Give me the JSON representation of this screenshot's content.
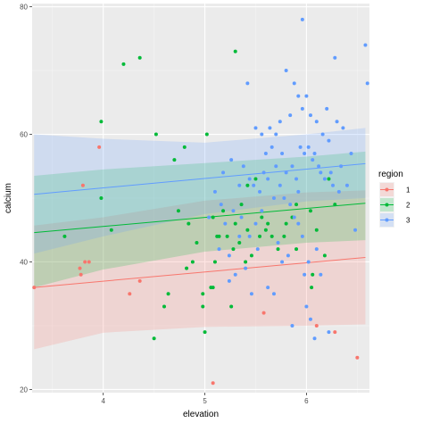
{
  "chart_data": {
    "type": "scatter",
    "xlabel": "elevation",
    "ylabel": "calcium",
    "xlim": [
      3.3,
      6.62
    ],
    "ylim": [
      19.5,
      80.5
    ],
    "x_ticks": [
      4,
      5,
      6
    ],
    "y_ticks": [
      20,
      40,
      60,
      80
    ],
    "grid": true,
    "legend": {
      "title": "region",
      "position": "right"
    },
    "series": [
      {
        "name": "1",
        "color": "#F8766D",
        "fit": {
          "x": [
            3.32,
            6.58
          ],
          "y": [
            36.0,
            40.7
          ],
          "lower": [
            [
              3.32,
              26.3
            ],
            [
              4.0,
              28.9
            ],
            [
              5.0,
              29.8
            ],
            [
              6.0,
              30.0
            ],
            [
              6.58,
              30.2
            ]
          ],
          "upper": [
            [
              3.32,
              45.7
            ],
            [
              4.0,
              47.0
            ],
            [
              5.0,
              49.6
            ],
            [
              6.0,
              50.9
            ],
            [
              6.58,
              51.2
            ]
          ]
        },
        "points": [
          [
            3.32,
            36
          ],
          [
            3.8,
            52
          ],
          [
            3.82,
            40
          ],
          [
            3.86,
            40
          ],
          [
            3.77,
            39
          ],
          [
            3.78,
            38
          ],
          [
            3.96,
            58
          ],
          [
            4.26,
            35
          ],
          [
            4.36,
            37
          ],
          [
            5.08,
            21
          ],
          [
            5.58,
            32
          ],
          [
            6.1,
            30
          ],
          [
            6.28,
            29
          ],
          [
            6.5,
            25
          ]
        ]
      },
      {
        "name": "2",
        "color": "#00BA38",
        "fit": {
          "x": [
            3.32,
            6.58
          ],
          "y": [
            44.6,
            49.2
          ],
          "lower": [
            [
              3.32,
              36.0
            ],
            [
              4.0,
              38.8
            ],
            [
              5.0,
              41.6
            ],
            [
              6.0,
              43.0
            ],
            [
              6.58,
              43.4
            ]
          ],
          "upper": [
            [
              3.32,
              53.5
            ],
            [
              4.0,
              54.5
            ],
            [
              5.0,
              55.5
            ],
            [
              6.0,
              56.5
            ],
            [
              6.58,
              57.3
            ]
          ]
        },
        "points": [
          [
            3.62,
            44
          ],
          [
            3.98,
            62
          ],
          [
            4.2,
            71
          ],
          [
            4.36,
            72
          ],
          [
            3.98,
            50
          ],
          [
            4.08,
            45
          ],
          [
            4.52,
            60
          ],
          [
            4.7,
            56
          ],
          [
            4.8,
            58
          ],
          [
            5.02,
            60
          ],
          [
            5.3,
            73
          ],
          [
            5.42,
            52
          ],
          [
            4.92,
            43
          ],
          [
            4.98,
            35
          ],
          [
            5.08,
            47
          ],
          [
            5.12,
            44
          ],
          [
            5.18,
            48
          ],
          [
            5.22,
            44
          ],
          [
            5.28,
            42
          ],
          [
            5.3,
            46
          ],
          [
            5.34,
            43
          ],
          [
            5.36,
            49
          ],
          [
            5.42,
            45
          ],
          [
            5.46,
            41
          ],
          [
            5.5,
            53
          ],
          [
            5.56,
            47
          ],
          [
            5.6,
            45
          ],
          [
            5.66,
            44
          ],
          [
            5.72,
            42
          ],
          [
            5.78,
            44
          ],
          [
            5.8,
            46
          ],
          [
            5.86,
            47
          ],
          [
            5.9,
            49
          ],
          [
            6.04,
            48
          ],
          [
            6.06,
            38
          ],
          [
            6.1,
            45
          ],
          [
            6.18,
            41
          ],
          [
            6.22,
            53
          ],
          [
            6.28,
            49
          ],
          [
            4.98,
            33
          ],
          [
            5.08,
            36
          ],
          [
            4.88,
            40
          ],
          [
            5.4,
            40
          ],
          [
            4.6,
            33
          ],
          [
            4.5,
            28
          ],
          [
            5.0,
            29
          ],
          [
            5.54,
            44
          ],
          [
            5.62,
            46
          ],
          [
            5.26,
            33
          ],
          [
            4.84,
            46
          ],
          [
            5.06,
            36
          ],
          [
            5.1,
            40
          ],
          [
            4.82,
            39
          ],
          [
            5.9,
            42
          ],
          [
            4.64,
            35
          ],
          [
            4.74,
            48
          ],
          [
            6.05,
            36
          ],
          [
            5.14,
            44
          ]
        ]
      },
      {
        "name": "3",
        "color": "#619CFF",
        "fit": {
          "x": [
            3.32,
            6.58
          ],
          "y": [
            50.6,
            55.4
          ],
          "lower": [
            [
              3.32,
              41.3
            ],
            [
              4.0,
              44.0
            ],
            [
              5.0,
              47.5
            ],
            [
              6.0,
              49.5
            ],
            [
              6.58,
              50.0
            ]
          ],
          "upper": [
            [
              3.32,
              60.0
            ],
            [
              4.0,
              59.3
            ],
            [
              5.0,
              58.7
            ],
            [
              6.0,
              60.0
            ],
            [
              6.58,
              61.0
            ]
          ]
        },
        "points": [
          [
            5.96,
            78
          ],
          [
            6.58,
            74
          ],
          [
            6.28,
            72
          ],
          [
            6.6,
            68
          ],
          [
            5.8,
            70
          ],
          [
            5.88,
            68
          ],
          [
            5.92,
            66
          ],
          [
            5.96,
            64
          ],
          [
            6.0,
            66
          ],
          [
            6.04,
            63
          ],
          [
            6.1,
            62
          ],
          [
            6.2,
            64
          ],
          [
            6.3,
            62
          ],
          [
            6.16,
            60
          ],
          [
            6.22,
            59
          ],
          [
            6.36,
            61
          ],
          [
            5.42,
            68
          ],
          [
            5.5,
            61
          ],
          [
            5.56,
            60
          ],
          [
            5.6,
            57
          ],
          [
            5.66,
            58
          ],
          [
            5.7,
            55
          ],
          [
            5.76,
            57
          ],
          [
            5.8,
            54
          ],
          [
            5.86,
            55
          ],
          [
            5.9,
            53
          ],
          [
            5.94,
            58
          ],
          [
            5.98,
            57
          ],
          [
            6.02,
            58
          ],
          [
            6.06,
            56
          ],
          [
            6.08,
            57
          ],
          [
            6.12,
            55
          ],
          [
            6.14,
            54
          ],
          [
            6.18,
            53
          ],
          [
            6.26,
            52
          ],
          [
            6.32,
            51
          ],
          [
            6.4,
            52
          ],
          [
            5.38,
            55
          ],
          [
            5.44,
            53
          ],
          [
            5.48,
            52
          ],
          [
            5.54,
            51
          ],
          [
            5.62,
            53
          ],
          [
            5.68,
            50
          ],
          [
            5.74,
            52
          ],
          [
            5.78,
            50
          ],
          [
            5.84,
            49
          ],
          [
            5.88,
            47
          ],
          [
            5.92,
            46
          ],
          [
            5.96,
            44
          ],
          [
            5.36,
            47
          ],
          [
            5.28,
            48
          ],
          [
            5.2,
            46
          ],
          [
            5.16,
            49
          ],
          [
            5.04,
            47
          ],
          [
            5.44,
            44
          ],
          [
            5.5,
            46
          ],
          [
            5.52,
            42
          ],
          [
            5.72,
            43
          ],
          [
            5.76,
            40
          ],
          [
            5.82,
            41
          ],
          [
            5.98,
            38
          ],
          [
            6.02,
            40
          ],
          [
            6.1,
            42
          ],
          [
            6.14,
            38
          ],
          [
            5.3,
            38
          ],
          [
            5.24,
            37
          ],
          [
            5.46,
            35
          ],
          [
            5.62,
            36
          ],
          [
            5.68,
            35
          ],
          [
            5.86,
            30
          ],
          [
            6.0,
            33
          ],
          [
            6.04,
            31
          ],
          [
            6.08,
            28
          ],
          [
            6.22,
            29
          ],
          [
            5.92,
            51
          ],
          [
            5.18,
            54
          ],
          [
            5.26,
            56
          ],
          [
            5.34,
            52
          ],
          [
            5.58,
            54
          ],
          [
            5.64,
            61
          ],
          [
            5.7,
            60
          ],
          [
            5.74,
            62
          ],
          [
            5.84,
            63
          ],
          [
            6.24,
            54
          ],
          [
            6.44,
            57
          ],
          [
            6.34,
            55
          ],
          [
            5.56,
            48
          ],
          [
            5.1,
            51
          ],
          [
            5.14,
            42
          ],
          [
            5.24,
            41
          ],
          [
            5.34,
            44
          ],
          [
            5.4,
            39
          ],
          [
            6.48,
            45
          ]
        ]
      }
    ]
  }
}
